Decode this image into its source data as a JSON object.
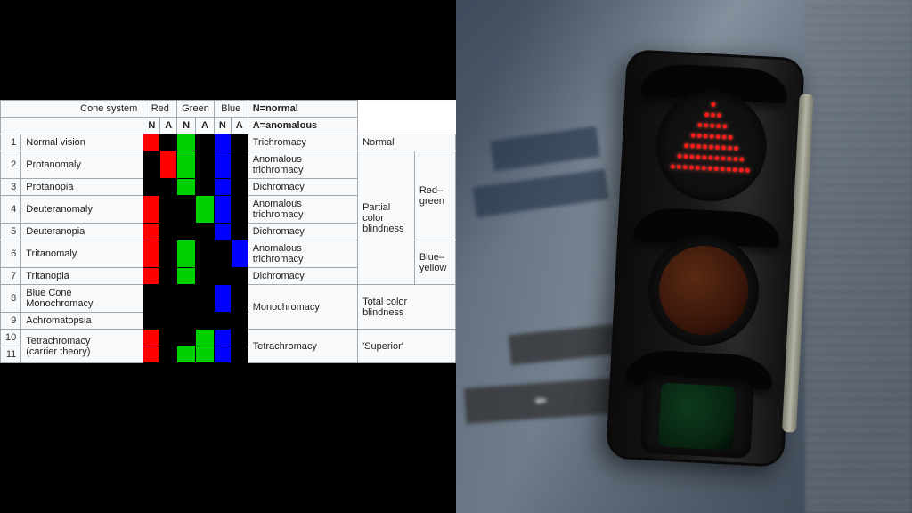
{
  "table": {
    "header": {
      "cone_system": "Cone system",
      "red": "Red",
      "green": "Green",
      "blue": "Blue",
      "n": "N",
      "a": "A",
      "legend_n": "N=normal",
      "legend_a": "A=anomalous"
    },
    "colors": {
      "red": "#ff0000",
      "green": "#00d000",
      "blue": "#0000ff",
      "off": "#000000",
      "border": "#a2a9b1",
      "bg": "#f8f9fa"
    },
    "group_labels": {
      "partial": "Partial\ncolor\nblindness",
      "red_green": "Red–\ngreen",
      "blue_yellow": "Blue–\nyellow",
      "total": "Total color blindness",
      "normal": "Normal",
      "superior": "'Superior'"
    },
    "class_labels": {
      "trichromacy": "Trichromacy",
      "anomalous_trichromacy": "Anomalous trichromacy",
      "dichromacy": "Dichromacy",
      "monochromacy": "Monochromacy",
      "tetrachromacy": "Tetrachromacy"
    },
    "rows": [
      {
        "n": "1",
        "name": "Normal vision"
      },
      {
        "n": "2",
        "name": "Protanomaly"
      },
      {
        "n": "3",
        "name": "Protanopia"
      },
      {
        "n": "4",
        "name": "Deuteranomaly"
      },
      {
        "n": "5",
        "name": "Deuteranopia"
      },
      {
        "n": "6",
        "name": "Tritanomaly"
      },
      {
        "n": "7",
        "name": "Tritanopia"
      },
      {
        "n": "8",
        "name": "Blue Cone Monochromacy"
      },
      {
        "n": "9",
        "name": "Achromatopsia"
      },
      {
        "n": "10",
        "name": "Tetrachromacy"
      },
      {
        "n": "11",
        "name": "(carrier theory)"
      }
    ],
    "cone_grid_colors": [
      [
        "red",
        "off",
        "green",
        "off",
        "blue",
        "off"
      ],
      [
        "off",
        "red",
        "green",
        "off",
        "blue",
        "off"
      ],
      [
        "off",
        "off",
        "green",
        "off",
        "blue",
        "off"
      ],
      [
        "red",
        "off",
        "off",
        "green",
        "blue",
        "off"
      ],
      [
        "red",
        "off",
        "off",
        "off",
        "blue",
        "off"
      ],
      [
        "red",
        "off",
        "green",
        "off",
        "off",
        "blue"
      ],
      [
        "red",
        "off",
        "green",
        "off",
        "off",
        "off"
      ],
      [
        "off",
        "off",
        "off",
        "off",
        "blue",
        "off"
      ],
      [
        "off",
        "off",
        "off",
        "off",
        "off",
        "off"
      ],
      [
        "red",
        "off",
        "off",
        "green",
        "blue",
        "off"
      ],
      [
        "red",
        "off",
        "green",
        "green",
        "blue",
        "off"
      ]
    ]
  },
  "traffic_light": {
    "housing_color": "#111111",
    "bracket_color": "#a6a696",
    "top": {
      "shape": "triangle",
      "color": "#ff1a1a",
      "lit": true
    },
    "middle": {
      "shape": "circle",
      "color": "#6b2a10",
      "lit": false
    },
    "bottom": {
      "shape": "square",
      "color": "#0e3a1e",
      "lit": false
    },
    "background": {
      "tone": "#6b7684"
    }
  }
}
